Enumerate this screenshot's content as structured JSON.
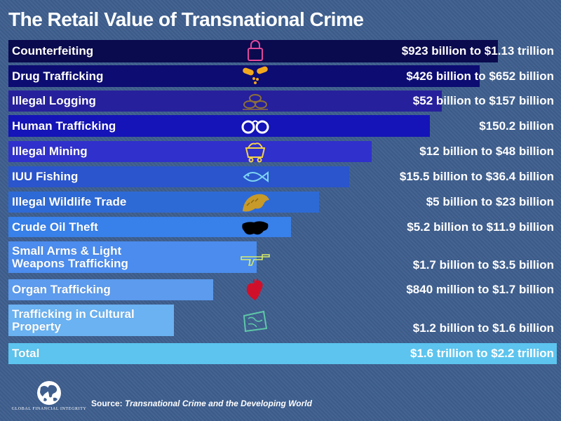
{
  "title": "The Retail Value of Transnational Crime",
  "chart_data": {
    "type": "bar",
    "title": "The Retail Value of Transnational Crime",
    "categories": [
      "Counterfeiting",
      "Drug Trafficking",
      "Illegal Logging",
      "Human Trafficking",
      "Illegal Mining",
      "IUU Fishing",
      "Illegal Wildlife Trade",
      "Crude Oil Theft",
      "Small Arms & Light\nWeapons Trafficking",
      "Organ Trafficking",
      "Trafficking in Cultural\nProperty",
      "Total"
    ],
    "value_labels": [
      "$923 billion to $1.13 trillion",
      "$426 billion to $652 billion",
      "$52 billion to $157 billion",
      "$150.2 billion",
      "$12 billion to $48 billion",
      "$15.5 billion to $36.4 billion",
      "$5 billion to $23 billion",
      "$5.2 billion to $11.9 billion",
      "$1.7 billion to $3.5 billion",
      "$840 million to $1.7 billion",
      "$1.2 billion to $1.6 billion",
      "$1.6 trillion to $2.2 trillion"
    ],
    "values": [
      12,
      11,
      10,
      9,
      8,
      7,
      6,
      5,
      4,
      3,
      2,
      13
    ],
    "colors": [
      "#0a0a4e",
      "#0c0c72",
      "#26209c",
      "#1414b8",
      "#3030cc",
      "#2a55cc",
      "#2e6ad6",
      "#3880ea",
      "#4b8cee",
      "#5c9bee",
      "#6ab2f2",
      "#5cc4ee"
    ],
    "icons": [
      "lock-icon",
      "pills-icon",
      "logs-icon",
      "handcuffs-icon",
      "mine-cart-icon",
      "fish-icon",
      "pangolin-icon",
      "oil-spill-icon",
      "rifle-icon",
      "heart-organ-icon",
      "artifact-icon",
      ""
    ],
    "xlabel": "",
    "ylabel": ""
  },
  "colors": {
    "background": "#3e5e8e",
    "counterfeit_icon": "#e0489a",
    "pills_icon": "#f2a81e",
    "logs_icon": "#8c6f3a",
    "handcuffs_icon": "#ffffff",
    "mine_icon": "#f2d24c",
    "fish_icon": "#7ed4f0",
    "pangolin_icon": "#c89a2a",
    "oil_icon": "#000000",
    "rifle_icon": "#d8ec6a",
    "heart_icon": "#d0102a",
    "artifact_icon": "#5ec7a8"
  },
  "logo": {
    "text": "GLOBAL FINANCIAL INTEGRITY"
  },
  "source": {
    "prefix": "Source: ",
    "title": "Transnational Crime and the Developing World"
  }
}
